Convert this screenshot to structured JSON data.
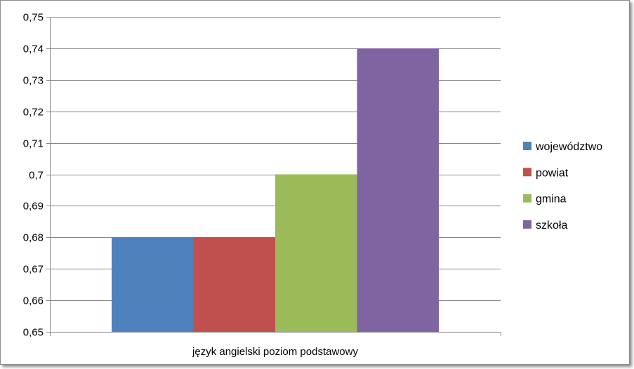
{
  "chart_data": {
    "type": "bar",
    "categories": [
      "język angielski poziom podstawowy"
    ],
    "series": [
      {
        "name": "województwo",
        "values": [
          0.68
        ],
        "color": "#4f81bd"
      },
      {
        "name": "powiat",
        "values": [
          0.68
        ],
        "color": "#c0504d"
      },
      {
        "name": "gmina",
        "values": [
          0.7
        ],
        "color": "#9bbb59"
      },
      {
        "name": "szkoła",
        "values": [
          0.74
        ],
        "color": "#8064a2"
      }
    ],
    "ylim": [
      0.65,
      0.75
    ],
    "yticks": [
      0.65,
      0.66,
      0.67,
      0.68,
      0.69,
      0.7,
      0.71,
      0.72,
      0.73,
      0.74,
      0.75
    ],
    "ytick_labels": [
      "0,65",
      "0,66",
      "0,67",
      "0,68",
      "0,69",
      "0,7",
      "0,71",
      "0,72",
      "0,73",
      "0,74",
      "0,75"
    ],
    "grid": true,
    "legend_position": "right",
    "title": "",
    "xlabel": "",
    "ylabel": ""
  }
}
